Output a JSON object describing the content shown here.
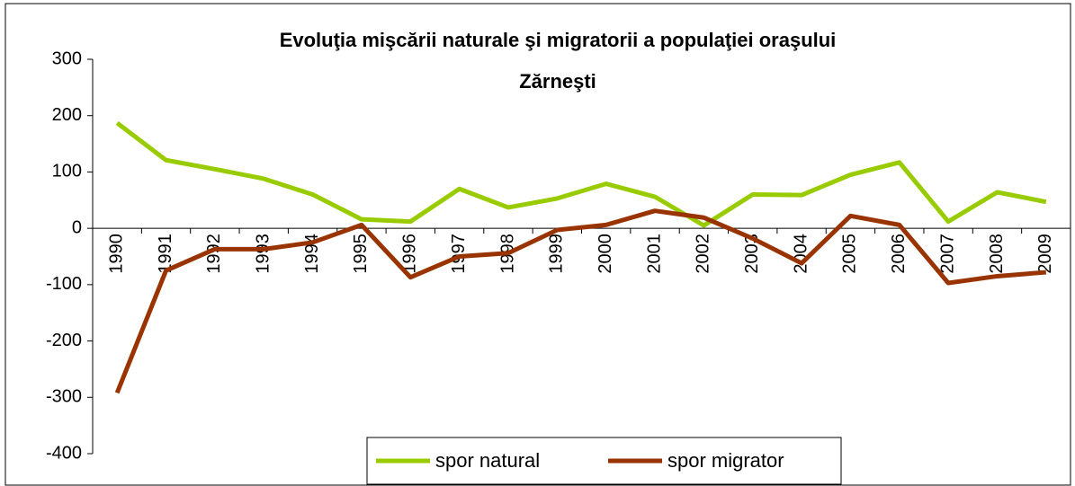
{
  "chart_data": {
    "type": "line",
    "title": [
      "Evoluţia mişcării naturale şi migratorii a populaţiei oraşului",
      "Zărneşti"
    ],
    "categories": [
      "1990",
      "1991",
      "1992",
      "1993",
      "1994",
      "1995",
      "1996",
      "1997",
      "1998",
      "1999",
      "2000",
      "2001",
      "2002",
      "2003",
      "2004",
      "2005",
      "2006",
      "2007",
      "2008",
      "2009"
    ],
    "series": [
      {
        "name": "spor natural",
        "color": "#99cc00",
        "values": [
          187,
          121,
          105,
          88,
          60,
          16,
          12,
          70,
          37,
          53,
          79,
          56,
          5,
          60,
          59,
          95,
          117,
          12,
          64,
          47
        ]
      },
      {
        "name": "spor migrator",
        "color": "#993300",
        "values": [
          -292,
          -75,
          -37,
          -37,
          -25,
          6,
          -87,
          -50,
          -44,
          -3,
          6,
          31,
          19,
          -18,
          -62,
          22,
          6,
          -97,
          -85,
          -78
        ]
      }
    ],
    "ylim": [
      -400,
      300
    ],
    "yticks": [
      -400,
      -300,
      -200,
      -100,
      0,
      100,
      200,
      300
    ],
    "grid": false,
    "legend": "bottom"
  }
}
